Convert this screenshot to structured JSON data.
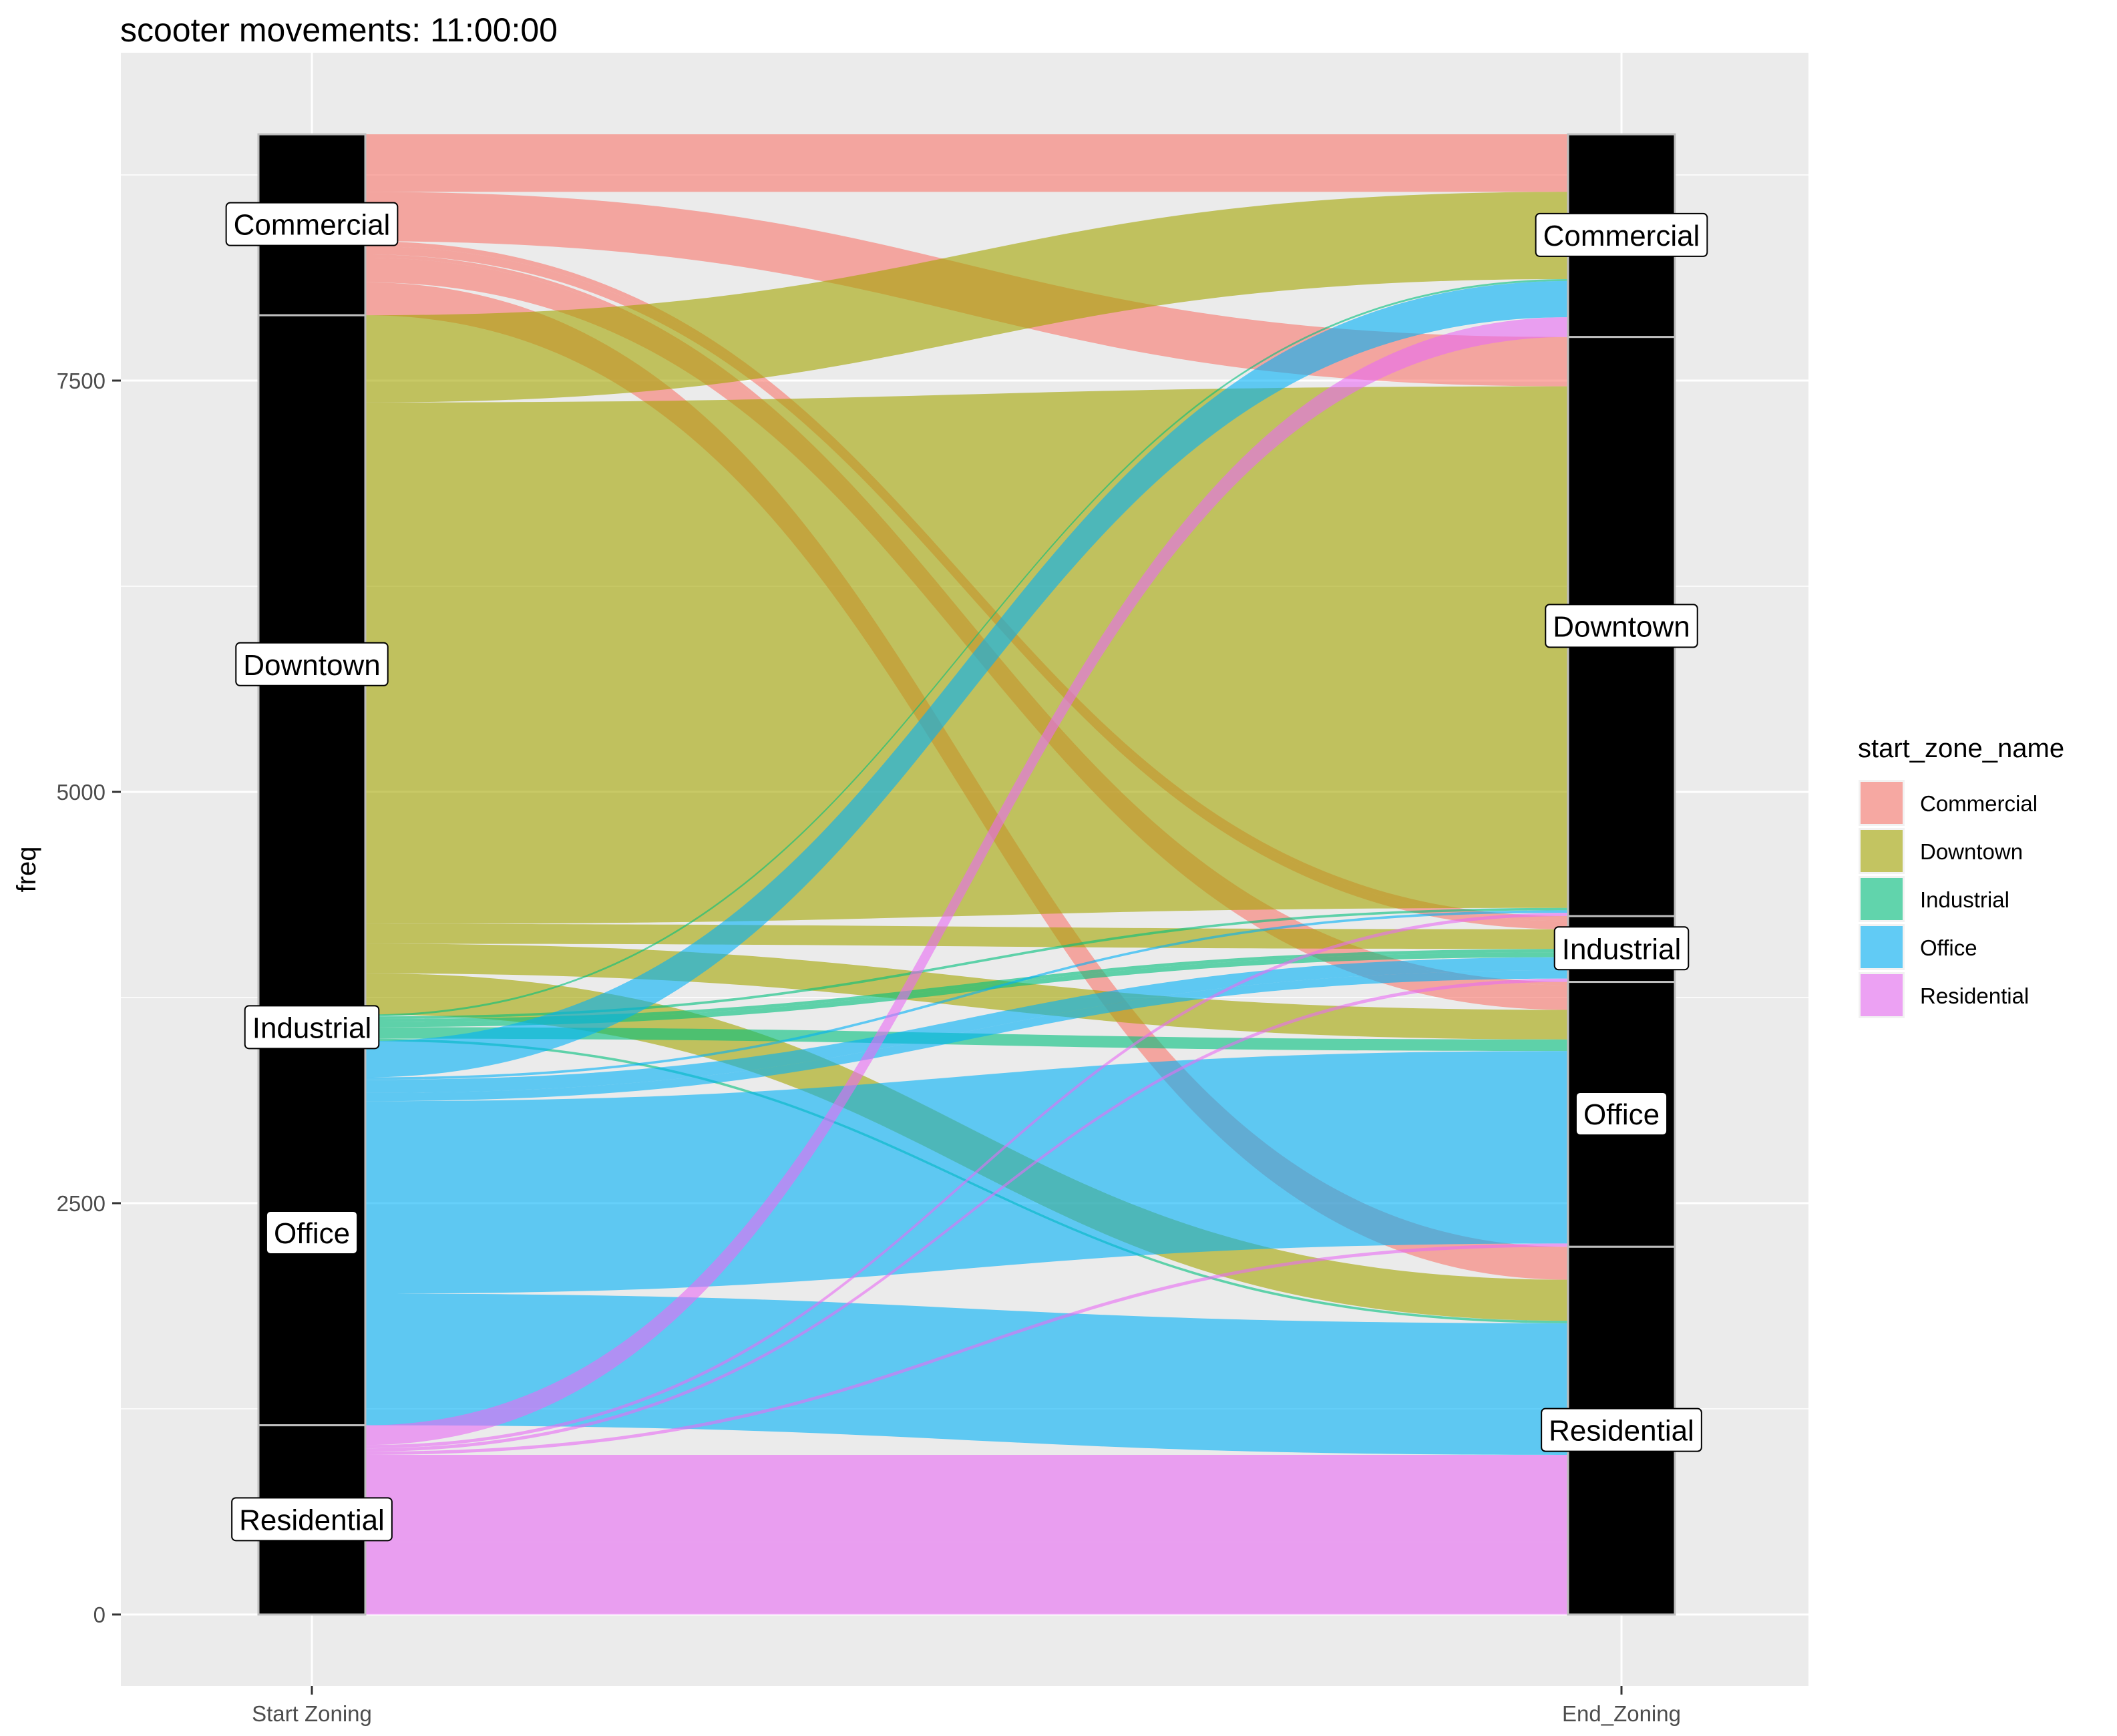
{
  "chart_data": {
    "type": "alluvial",
    "title": "scooter movements:  11:00:00",
    "ylabel": "freq",
    "xlabel": "",
    "axes": [
      "Start Zoning",
      "End_Zoning"
    ],
    "y_ticks": [
      0,
      2500,
      5000,
      7500
    ],
    "ylim": [
      -470,
      9450
    ],
    "grid": true,
    "legend": {
      "title": "start_zone_name",
      "position": "right",
      "entries": [
        "Commercial",
        "Downtown",
        "Industrial",
        "Office",
        "Residential"
      ]
    },
    "colors": {
      "Commercial": "#F8766D",
      "Downtown": "#A3A500",
      "Industrial": "#00BF7D",
      "Office": "#00B0F6",
      "Residential": "#E76BF3",
      "panel": "#EBEBEB",
      "grid": "#FFFFFF",
      "stratum_fill": "#000000",
      "stratum_border": "#BEBEBE"
    },
    "strata_order_top_to_bottom": [
      "Commercial",
      "Downtown",
      "Industrial",
      "Office",
      "Residential"
    ],
    "flows": [
      {
        "from": "Commercial",
        "to": "Commercial",
        "value": 350
      },
      {
        "from": "Commercial",
        "to": "Downtown",
        "value": 300
      },
      {
        "from": "Commercial",
        "to": "Industrial",
        "value": 30
      },
      {
        "from": "Commercial",
        "to": "Industrial",
        "value": 50
      },
      {
        "from": "Commercial",
        "to": "Office",
        "value": 20
      },
      {
        "from": "Commercial",
        "to": "Office",
        "value": 150
      },
      {
        "from": "Commercial",
        "to": "Residential",
        "value": 200
      },
      {
        "from": "Downtown",
        "to": "Commercial",
        "value": 530
      },
      {
        "from": "Downtown",
        "to": "Downtown",
        "value": 3170
      },
      {
        "from": "Downtown",
        "to": "Industrial",
        "value": 120
      },
      {
        "from": "Downtown",
        "to": "Office",
        "value": 180
      },
      {
        "from": "Downtown",
        "to": "Residential",
        "value": 250
      },
      {
        "from": "Industrial",
        "to": "Commercial",
        "value": 12
      },
      {
        "from": "Industrial",
        "to": "Downtown",
        "value": 15
      },
      {
        "from": "Industrial",
        "to": "Industrial",
        "value": 20
      },
      {
        "from": "Industrial",
        "to": "Industrial",
        "value": 30
      },
      {
        "from": "Industrial",
        "to": "Office",
        "value": 70
      },
      {
        "from": "Industrial",
        "to": "Residential",
        "value": 15
      },
      {
        "from": "Office",
        "to": "Commercial",
        "value": 220
      },
      {
        "from": "Office",
        "to": "Downtown",
        "value": 15
      },
      {
        "from": "Office",
        "to": "Industrial",
        "value": 80
      },
      {
        "from": "Office",
        "to": "Industrial",
        "value": 50
      },
      {
        "from": "Office",
        "to": "Office",
        "value": 1170
      },
      {
        "from": "Office",
        "to": "Residential",
        "value": 800
      },
      {
        "from": "Residential",
        "to": "Commercial",
        "value": 120
      },
      {
        "from": "Residential",
        "to": "Downtown",
        "value": 20
      },
      {
        "from": "Residential",
        "to": "Industrial",
        "value": 20
      },
      {
        "from": "Residential",
        "to": "Office",
        "value": 20
      },
      {
        "from": "Residential",
        "to": "Residential",
        "value": 530
      },
      {
        "from": "Residential",
        "to": "Residential",
        "value": 440
      }
    ]
  }
}
